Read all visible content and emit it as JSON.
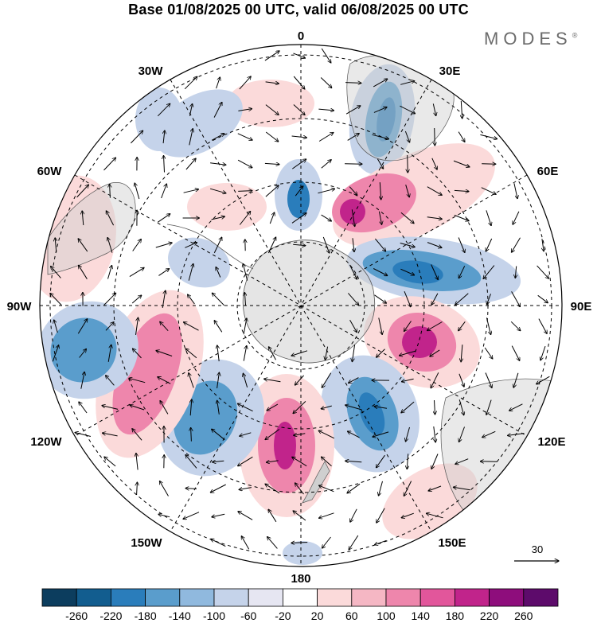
{
  "title": "Base 01/08/2025 00 UTC, valid 06/08/2025 00 UTC",
  "brand": "MODES",
  "brand_mark": "®",
  "longitude_labels": {
    "l0": "0",
    "l30e": "30E",
    "l60e": "60E",
    "l90e": "90E",
    "l120e": "120E",
    "l150e": "150E",
    "l180": "180",
    "l150w": "150W",
    "l120w": "120W",
    "l90w": "90W",
    "l60w": "60W",
    "l30w": "30W"
  },
  "reference_vector": {
    "label": "30"
  },
  "colorbar": {
    "labels": [
      "-260",
      "-220",
      "-180",
      "-140",
      "-100",
      "-60",
      "-20",
      "20",
      "60",
      "100",
      "140",
      "180",
      "220",
      "260"
    ],
    "colors": [
      "#0c3d5e",
      "#125d8f",
      "#2a7dbb",
      "#5a9dcc",
      "#90b9de",
      "#c5d3ea",
      "#e6e6f2",
      "#ffffff",
      "#fbdada",
      "#f5b7c4",
      "#ee86ac",
      "#e2569b",
      "#c1248b",
      "#8e0d7c",
      "#5d0b6b"
    ]
  },
  "map_colors": {
    "land": "#cfcfcf",
    "blue_strong": "#2a7dbb",
    "blue_med": "#5a9dcc",
    "blue_light": "#c5d3ea",
    "pink_light": "#fbdada",
    "pink_med": "#ee86ac",
    "magenta": "#c1248b"
  }
}
